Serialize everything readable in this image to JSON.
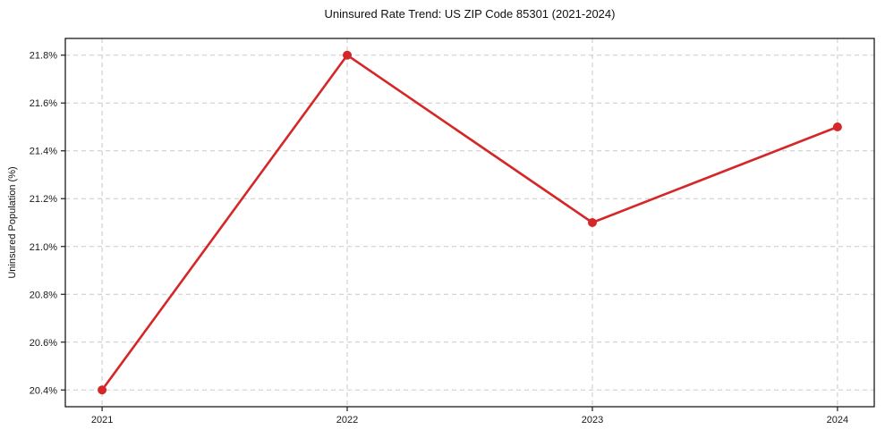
{
  "chart_data": {
    "type": "line",
    "title": "Uninsured Rate Trend: US ZIP Code 85301 (2021-2024)",
    "xlabel": "",
    "ylabel": "Uninsured Population (%)",
    "series": [
      {
        "name": "uninsured-rate",
        "x": [
          2021,
          2022,
          2023,
          2024
        ],
        "values": [
          20.4,
          21.8,
          21.1,
          21.5
        ]
      }
    ],
    "x_ticks": [
      2021,
      2022,
      2023,
      2024
    ],
    "x_tick_labels": [
      "2021",
      "2022",
      "2023",
      "2024"
    ],
    "y_ticks": [
      20.4,
      20.6,
      20.8,
      21.0,
      21.2,
      21.4,
      21.6,
      21.8
    ],
    "y_tick_labels": [
      "20.4%",
      "20.6%",
      "20.8%",
      "21.0%",
      "21.2%",
      "21.4%",
      "21.6%",
      "21.8%"
    ],
    "xlim": [
      2020.85,
      2024.15
    ],
    "ylim": [
      20.33,
      21.87
    ],
    "grid": true,
    "grid_style": "dashed",
    "legend": "none",
    "marker": "circle",
    "colors": {
      "line": "#d62728",
      "marker": "#d62728",
      "grid": "#c8c8c8",
      "axis": "#1a1a1a",
      "tick_text": "#1a1a1a",
      "background": "#ffffff"
    }
  }
}
